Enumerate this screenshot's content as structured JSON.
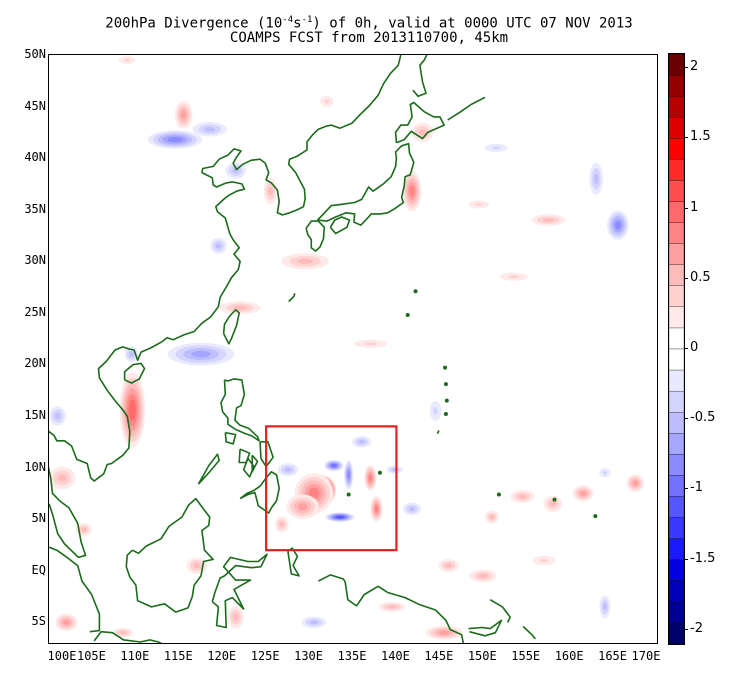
{
  "title": {
    "line1_prefix": "200hPa Divergence (10",
    "line1_exp1": "-4",
    "line1_mid": "s",
    "line1_exp2": "-1",
    "line1_suffix": ") of 0h, valid at 0000 UTC 07 NOV 2013",
    "line2": "COAMPS FCST from 2013110700, 45km"
  },
  "map": {
    "lon_range": [
      100,
      170
    ],
    "lat_range": [
      -7,
      50
    ],
    "lat_labels": [
      {
        "lat": 50,
        "text": "50N"
      },
      {
        "lat": 45,
        "text": "45N"
      },
      {
        "lat": 40,
        "text": "40N"
      },
      {
        "lat": 35,
        "text": "35N"
      },
      {
        "lat": 30,
        "text": "30N"
      },
      {
        "lat": 25,
        "text": "25N"
      },
      {
        "lat": 20,
        "text": "20N"
      },
      {
        "lat": 15,
        "text": "15N"
      },
      {
        "lat": 10,
        "text": "10N"
      },
      {
        "lat": 5,
        "text": "5N"
      },
      {
        "lat": 0,
        "text": "EQ"
      },
      {
        "lat": -5,
        "text": "5S"
      }
    ],
    "lon_labels": [
      {
        "lon": 100,
        "text": "100E"
      },
      {
        "lon": 105,
        "text": "105E"
      },
      {
        "lon": 110,
        "text": "110E"
      },
      {
        "lon": 115,
        "text": "115E"
      },
      {
        "lon": 120,
        "text": "120E"
      },
      {
        "lon": 125,
        "text": "125E"
      },
      {
        "lon": 130,
        "text": "130E"
      },
      {
        "lon": 135,
        "text": "135E"
      },
      {
        "lon": 140,
        "text": "140E"
      },
      {
        "lon": 145,
        "text": "145E"
      },
      {
        "lon": 150,
        "text": "150E"
      },
      {
        "lon": 155,
        "text": "155E"
      },
      {
        "lon": 160,
        "text": "160E"
      },
      {
        "lon": 165,
        "text": "165E"
      },
      {
        "lon": 170,
        "text": "170E"
      }
    ],
    "highlight_box": {
      "lon_min": 125,
      "lon_max": 140,
      "lat_min": 2,
      "lat_max": 14,
      "color": "#dd2222"
    },
    "coast_color": "#1a6b1a"
  },
  "colorbar": {
    "range": [
      -2.1,
      2.1
    ],
    "labels": [
      {
        "value": 2,
        "text": "2"
      },
      {
        "value": 1.5,
        "text": "1.5"
      },
      {
        "value": 1,
        "text": "1"
      },
      {
        "value": 0.5,
        "text": "0.5"
      },
      {
        "value": 0,
        "text": "0"
      },
      {
        "value": -0.5,
        "text": "-0.5"
      },
      {
        "value": -1,
        "text": "-1"
      },
      {
        "value": -1.5,
        "text": "-1.5"
      },
      {
        "value": -2,
        "text": "-2"
      }
    ],
    "colors_positive": [
      "#ffffff",
      "#ffeaea",
      "#ffd2d2",
      "#ffbaba",
      "#ffa0a0",
      "#ff8585",
      "#ff6a6a",
      "#ff4c4c",
      "#ff2a2a",
      "#ff0000",
      "#dd0000",
      "#b80000",
      "#920000",
      "#6a0000"
    ],
    "colors_negative": [
      "#ffffff",
      "#eaeaff",
      "#d4d4ff",
      "#bebeff",
      "#a6a6ff",
      "#8c8cff",
      "#7272ff",
      "#5656ff",
      "#3838ff",
      "#1a1aff",
      "#0000e0",
      "#0000b8",
      "#000090",
      "#000068"
    ]
  },
  "field_blobs": [
    {
      "lon": 131.5,
      "lat": 7.8,
      "rx": 1.6,
      "ry": 1.5,
      "v": 1.9
    },
    {
      "lon": 130.5,
      "lat": 7.5,
      "rx": 2.5,
      "ry": 2.2,
      "v": 0.8
    },
    {
      "lon": 129.2,
      "lat": 6.2,
      "rx": 2.2,
      "ry": 1.4,
      "v": 0.6
    },
    {
      "lon": 133.5,
      "lat": 5.2,
      "rx": 1.8,
      "ry": 0.5,
      "v": -1.0
    },
    {
      "lon": 132.8,
      "lat": 10.2,
      "rx": 1.2,
      "ry": 0.6,
      "v": -0.9
    },
    {
      "lon": 134.5,
      "lat": 9.3,
      "rx": 0.6,
      "ry": 1.6,
      "v": -0.7
    },
    {
      "lon": 137.0,
      "lat": 9.0,
      "rx": 0.8,
      "ry": 1.4,
      "v": 0.7
    },
    {
      "lon": 137.7,
      "lat": 6.0,
      "rx": 0.8,
      "ry": 1.4,
      "v": 0.8
    },
    {
      "lon": 136.0,
      "lat": 12.5,
      "rx": 1.4,
      "ry": 0.7,
      "v": -0.4
    },
    {
      "lon": 127.5,
      "lat": 9.8,
      "rx": 1.5,
      "ry": 0.8,
      "v": -0.4
    },
    {
      "lon": 126.8,
      "lat": 4.5,
      "rx": 1.0,
      "ry": 1.0,
      "v": 0.5
    },
    {
      "lon": 139.8,
      "lat": 9.8,
      "rx": 1.2,
      "ry": 0.5,
      "v": -0.5
    },
    {
      "lon": 141.8,
      "lat": 6.0,
      "rx": 1.3,
      "ry": 0.8,
      "v": -0.4
    },
    {
      "lon": 109.6,
      "lat": 15.6,
      "rx": 1.6,
      "ry": 4.0,
      "v": 0.9
    },
    {
      "lon": 101.5,
      "lat": 9.0,
      "rx": 2.0,
      "ry": 1.4,
      "v": 0.5
    },
    {
      "lon": 101.0,
      "lat": 15.0,
      "rx": 1.2,
      "ry": 1.2,
      "v": -0.4
    },
    {
      "lon": 109.5,
      "lat": 21.0,
      "rx": 1.0,
      "ry": 1.0,
      "v": -0.5
    },
    {
      "lon": 117.5,
      "lat": 21.0,
      "rx": 4.5,
      "ry": 1.3,
      "v": -0.6
    },
    {
      "lon": 122.0,
      "lat": 25.5,
      "rx": 3.0,
      "ry": 0.8,
      "v": 0.4
    },
    {
      "lon": 114.5,
      "lat": 41.8,
      "rx": 3.5,
      "ry": 1.0,
      "v": -0.7
    },
    {
      "lon": 118.5,
      "lat": 42.8,
      "rx": 2.5,
      "ry": 0.9,
      "v": -0.5
    },
    {
      "lon": 115.5,
      "lat": 44.2,
      "rx": 1.2,
      "ry": 1.6,
      "v": 0.6
    },
    {
      "lon": 121.5,
      "lat": 38.8,
      "rx": 1.5,
      "ry": 1.0,
      "v": -0.5
    },
    {
      "lon": 125.5,
      "lat": 36.8,
      "rx": 1.0,
      "ry": 1.6,
      "v": 0.4
    },
    {
      "lon": 119.5,
      "lat": 31.5,
      "rx": 1.2,
      "ry": 1.0,
      "v": -0.4
    },
    {
      "lon": 129.5,
      "lat": 30.0,
      "rx": 3.5,
      "ry": 1.0,
      "v": 0.4
    },
    {
      "lon": 141.8,
      "lat": 36.8,
      "rx": 1.2,
      "ry": 2.2,
      "v": 0.8
    },
    {
      "lon": 143.0,
      "lat": 42.5,
      "rx": 1.6,
      "ry": 1.2,
      "v": 0.4
    },
    {
      "lon": 151.5,
      "lat": 41.0,
      "rx": 2.0,
      "ry": 0.6,
      "v": -0.3
    },
    {
      "lon": 163.0,
      "lat": 38.0,
      "rx": 1.0,
      "ry": 2.0,
      "v": -0.4
    },
    {
      "lon": 165.5,
      "lat": 33.5,
      "rx": 1.4,
      "ry": 1.6,
      "v": -0.8
    },
    {
      "lon": 157.5,
      "lat": 34.0,
      "rx": 2.5,
      "ry": 0.7,
      "v": 0.4
    },
    {
      "lon": 153.5,
      "lat": 28.5,
      "rx": 2.5,
      "ry": 0.6,
      "v": 0.3
    },
    {
      "lon": 149.5,
      "lat": 35.5,
      "rx": 1.8,
      "ry": 0.6,
      "v": 0.3
    },
    {
      "lon": 151.0,
      "lat": 5.2,
      "rx": 1.0,
      "ry": 0.8,
      "v": 0.5
    },
    {
      "lon": 154.5,
      "lat": 7.2,
      "rx": 1.8,
      "ry": 0.8,
      "v": 0.5
    },
    {
      "lon": 158.0,
      "lat": 6.5,
      "rx": 1.4,
      "ry": 1.0,
      "v": 0.5
    },
    {
      "lon": 161.5,
      "lat": 7.5,
      "rx": 1.4,
      "ry": 0.9,
      "v": 0.6
    },
    {
      "lon": 167.5,
      "lat": 8.5,
      "rx": 1.2,
      "ry": 1.0,
      "v": 0.6
    },
    {
      "lon": 164.0,
      "lat": 9.5,
      "rx": 1.0,
      "ry": 0.7,
      "v": -0.3
    },
    {
      "lon": 146.0,
      "lat": 0.5,
      "rx": 1.5,
      "ry": 0.8,
      "v": 0.4
    },
    {
      "lon": 150.0,
      "lat": -0.5,
      "rx": 2.0,
      "ry": 0.8,
      "v": 0.4
    },
    {
      "lon": 157.0,
      "lat": 1.0,
      "rx": 2.0,
      "ry": 0.7,
      "v": 0.3
    },
    {
      "lon": 164.0,
      "lat": -3.5,
      "rx": 0.8,
      "ry": 1.4,
      "v": -0.4
    },
    {
      "lon": 145.5,
      "lat": -6.0,
      "rx": 2.5,
      "ry": 0.8,
      "v": 0.6
    },
    {
      "lon": 139.5,
      "lat": -3.5,
      "rx": 2.0,
      "ry": 0.6,
      "v": 0.4
    },
    {
      "lon": 130.5,
      "lat": -5.0,
      "rx": 1.8,
      "ry": 0.7,
      "v": -0.5
    },
    {
      "lon": 121.5,
      "lat": -4.5,
      "rx": 1.2,
      "ry": 1.4,
      "v": 0.5
    },
    {
      "lon": 117.0,
      "lat": 0.5,
      "rx": 1.5,
      "ry": 1.0,
      "v": 0.4
    },
    {
      "lon": 104.0,
      "lat": 4.0,
      "rx": 1.2,
      "ry": 0.8,
      "v": 0.4
    },
    {
      "lon": 102.0,
      "lat": -5.0,
      "rx": 1.5,
      "ry": 1.0,
      "v": 0.6
    },
    {
      "lon": 108.5,
      "lat": -6.0,
      "rx": 1.5,
      "ry": 0.6,
      "v": 0.4
    },
    {
      "lon": 132.0,
      "lat": 45.5,
      "rx": 1.2,
      "ry": 0.8,
      "v": 0.3
    },
    {
      "lon": 109.0,
      "lat": 49.5,
      "rx": 1.5,
      "ry": 0.6,
      "v": 0.3
    },
    {
      "lon": 137.0,
      "lat": 22.0,
      "rx": 3.0,
      "ry": 0.6,
      "v": 0.3
    },
    {
      "lon": 144.5,
      "lat": 15.5,
      "rx": 1.0,
      "ry": 1.5,
      "v": -0.3
    }
  ]
}
